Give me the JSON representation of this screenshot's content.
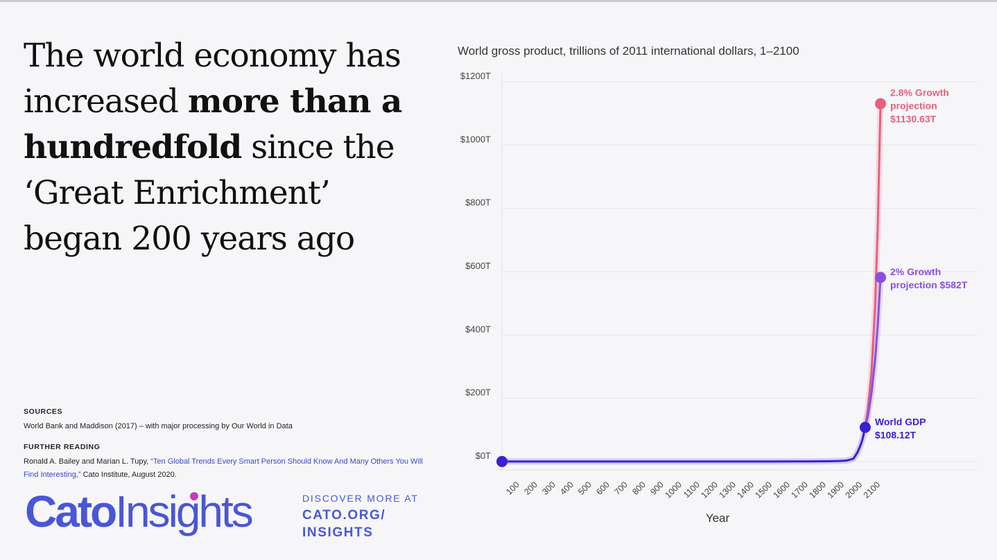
{
  "headline": {
    "part1": "The world economy has increased ",
    "bold": "more than a hundredfold",
    "part2": " since the ‘Great Enrichment’ began 200 years ago"
  },
  "sources": {
    "heading": "SOURCES",
    "text": "World Bank and Maddison (2017) – with major processing by Our World in Data"
  },
  "further_reading": {
    "heading": "FURTHER READING",
    "authors": "Ronald A. Bailey and Marian L. Tupy, ",
    "link_text": "“Ten Global Trends Every Smart Person Should Know And Many Others You Will Find Interesting,”",
    "suffix": " Cato Institute, August 2020."
  },
  "branding": {
    "logo_part1": "Cato",
    "logo_part2": "Insights",
    "discover_line": "DISCOVER MORE AT",
    "url_line1": "CATO.ORG/",
    "url_line2": "INSIGHTS",
    "brand_color": "#4a56d6"
  },
  "chart_data": {
    "type": "line",
    "title": "World gross product, trillions of 2011 international dollars, 1–2100",
    "xlabel": "Year",
    "ylabel": "",
    "xlim": [
      1,
      2100
    ],
    "ylim": [
      0,
      1200
    ],
    "y_ticks": [
      "$0T",
      "$200T",
      "$400T",
      "$600T",
      "$800T",
      "$1000T",
      "$1200T"
    ],
    "y_tick_values": [
      0,
      200,
      400,
      600,
      800,
      1000,
      1200
    ],
    "x_ticks": [
      "100",
      "200",
      "300",
      "400",
      "500",
      "600",
      "700",
      "800",
      "900",
      "1000",
      "1100",
      "1200",
      "1300",
      "1400",
      "1500",
      "1600",
      "1700",
      "1800",
      "1900",
      "2000",
      "2100"
    ],
    "x_tick_values": [
      100,
      200,
      300,
      400,
      500,
      600,
      700,
      800,
      900,
      1000,
      1100,
      1200,
      1300,
      1400,
      1500,
      1600,
      1700,
      1800,
      1900,
      2000,
      2100
    ],
    "grid": "horizontal",
    "series": [
      {
        "name": "World GDP",
        "color": "#3b1fd6",
        "x": [
          1,
          1000,
          1500,
          1700,
          1820,
          1870,
          1900,
          1913,
          1950,
          1973,
          1990,
          2000,
          2015
        ],
        "y": [
          0.2,
          0.2,
          0.4,
          0.6,
          1.2,
          1.9,
          2.8,
          3.5,
          9.2,
          30,
          53,
          70,
          108.12
        ]
      },
      {
        "name": "2% Growth projection",
        "color": "#8a4fe0",
        "x": [
          2015,
          2030,
          2050,
          2070,
          2085,
          2100
        ],
        "y": [
          108.12,
          145.5,
          216.2,
          321.3,
          432.4,
          582
        ]
      },
      {
        "name": "2.8% Growth projection",
        "color": "#e8607a",
        "x": [
          2015,
          2030,
          2050,
          2070,
          2085,
          2100
        ],
        "y": [
          108.12,
          163.3,
          284.1,
          494.3,
          747.8,
          1130.63
        ]
      }
    ],
    "annotations": [
      {
        "line1": "World GDP",
        "line2": "$108.12T",
        "x": 2015,
        "y": 108.12,
        "color": "#3b1fd6"
      },
      {
        "line1": "2% Growth",
        "line2": "projection $582T",
        "x": 2100,
        "y": 582,
        "color": "#8a4fe0"
      },
      {
        "line1": "2.8% Growth",
        "line2": "projection",
        "line3": "$1130.63T",
        "x": 2100,
        "y": 1130.63,
        "color": "#e8607a"
      }
    ],
    "start_marker": {
      "x": 1,
      "y": 0.2,
      "color": "#3b1fd6"
    }
  }
}
